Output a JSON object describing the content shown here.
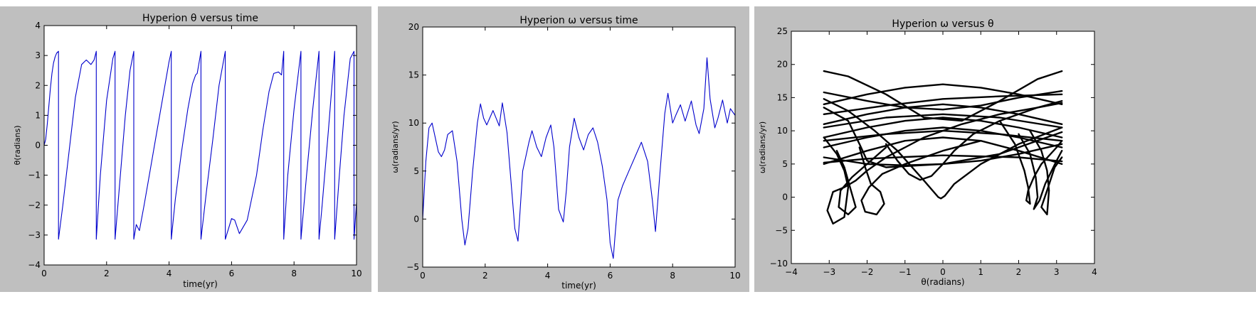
{
  "chart_data": [
    {
      "type": "line",
      "title": "Hyperion θ versus time",
      "xlabel": "time(yr)",
      "ylabel": "θ(radians)",
      "xlim": [
        0,
        10
      ],
      "ylim": [
        -4,
        4
      ],
      "xticks": [
        0,
        2,
        4,
        6,
        8,
        10
      ],
      "xtick_labels": [
        "0",
        "2",
        "4",
        "6",
        "8",
        "10"
      ],
      "yticks": [
        -4,
        -3,
        -2,
        -1,
        0,
        1,
        2,
        3,
        4
      ],
      "ytick_labels": [
        "−4",
        "−3",
        "−2",
        "−1",
        "0",
        "1",
        "2",
        "3",
        "4"
      ],
      "grid": false,
      "color": "#0000cc",
      "x": [
        0,
        0.05,
        0.1,
        0.15,
        0.2,
        0.25,
        0.3,
        0.35,
        0.4,
        0.46,
        0.46,
        0.6,
        0.8,
        1.0,
        1.2,
        1.35,
        1.5,
        1.6,
        1.67,
        1.67,
        1.8,
        2.0,
        2.2,
        2.27,
        2.27,
        2.4,
        2.6,
        2.75,
        2.87,
        2.87,
        2.95,
        3.05,
        3.2,
        3.4,
        3.6,
        3.8,
        4.0,
        4.07,
        4.07,
        4.2,
        4.4,
        4.6,
        4.75,
        4.85,
        4.9,
        4.95,
        5.02,
        5.02,
        5.2,
        5.4,
        5.6,
        5.8,
        5.8,
        6.0,
        6.1,
        6.25,
        6.5,
        6.8,
        7.0,
        7.2,
        7.35,
        7.5,
        7.6,
        7.67,
        7.67,
        7.8,
        8.0,
        8.22,
        8.22,
        8.4,
        8.6,
        8.8,
        8.8,
        8.9,
        9.1,
        9.3,
        9.3,
        9.45,
        9.6,
        9.8,
        9.92,
        9.92,
        10.0
      ],
      "y": [
        0,
        0.2,
        0.7,
        1.3,
        1.9,
        2.4,
        2.75,
        2.95,
        3.08,
        3.14,
        -3.14,
        -2.0,
        -0.2,
        1.6,
        2.7,
        2.85,
        2.7,
        2.85,
        3.14,
        -3.14,
        -1.0,
        1.5,
        2.9,
        3.14,
        -3.14,
        -1.5,
        1.0,
        2.5,
        3.14,
        -3.14,
        -2.65,
        -2.85,
        -2.0,
        -0.8,
        0.4,
        1.6,
        2.8,
        3.14,
        -3.14,
        -1.8,
        -0.2,
        1.2,
        2.05,
        2.35,
        2.4,
        2.7,
        3.14,
        -3.14,
        -1.5,
        0.2,
        2.0,
        3.14,
        -3.14,
        -2.45,
        -2.5,
        -2.95,
        -2.5,
        -1.0,
        0.5,
        1.8,
        2.4,
        2.45,
        2.35,
        3.14,
        -3.14,
        -1.0,
        1.2,
        3.14,
        -3.14,
        -1.0,
        1.2,
        3.14,
        -3.14,
        -2.0,
        0.5,
        3.14,
        -3.14,
        -1.0,
        1.0,
        2.9,
        3.14,
        -3.14,
        -1.9
      ]
    },
    {
      "type": "line",
      "title": "Hyperion ω versus time",
      "xlabel": "time(yr)",
      "ylabel": "ω(radians/yr)",
      "xlim": [
        0,
        10
      ],
      "ylim": [
        -5,
        20
      ],
      "xticks": [
        0,
        2,
        4,
        6,
        8,
        10
      ],
      "xtick_labels": [
        "0",
        "2",
        "4",
        "6",
        "8",
        "10"
      ],
      "yticks": [
        -5,
        0,
        5,
        10,
        15,
        20
      ],
      "ytick_labels": [
        "−5",
        "0",
        "5",
        "10",
        "15",
        "20"
      ],
      "grid": false,
      "color": "#0000cc",
      "x": [
        0,
        0.1,
        0.2,
        0.3,
        0.4,
        0.5,
        0.6,
        0.7,
        0.8,
        0.95,
        1.1,
        1.25,
        1.35,
        1.45,
        1.6,
        1.75,
        1.85,
        1.95,
        2.05,
        2.25,
        2.45,
        2.55,
        2.7,
        2.85,
        2.95,
        3.05,
        3.1,
        3.2,
        3.4,
        3.5,
        3.65,
        3.8,
        3.95,
        4.1,
        4.2,
        4.35,
        4.5,
        4.6,
        4.7,
        4.85,
        5.0,
        5.15,
        5.3,
        5.45,
        5.6,
        5.75,
        5.9,
        6.0,
        6.1,
        6.15,
        6.25,
        6.4,
        6.6,
        6.8,
        7.0,
        7.2,
        7.35,
        7.45,
        7.6,
        7.75,
        7.85,
        8.0,
        8.1,
        8.25,
        8.4,
        8.6,
        8.75,
        8.85,
        9.0,
        9.1,
        9.2,
        9.35,
        9.45,
        9.6,
        9.75,
        9.85,
        10.0
      ],
      "y": [
        0,
        6,
        9.5,
        10,
        8.5,
        7,
        6.5,
        7.2,
        8.8,
        9.2,
        6,
        0,
        -2.7,
        -1,
        5,
        10,
        12,
        10.5,
        9.8,
        11.3,
        9.7,
        12.1,
        9,
        3,
        -1,
        -2.3,
        0,
        5,
        8,
        9.2,
        7.5,
        6.5,
        8.5,
        9.8,
        7.5,
        1,
        -0.3,
        3,
        7.5,
        10.5,
        8.5,
        7.2,
        8.8,
        9.5,
        8,
        5.5,
        2,
        -2.5,
        -4.1,
        -2,
        2,
        3.5,
        5,
        6.5,
        8,
        6,
        2,
        -1.3,
        5,
        11,
        13.1,
        10,
        10.8,
        11.9,
        10.2,
        12.3,
        9.8,
        8.9,
        11.5,
        16.8,
        12.5,
        9.5,
        10.5,
        12.4,
        10,
        11.5,
        10.8
      ]
    },
    {
      "type": "scatter",
      "title": "Hyperion ω versus θ",
      "xlabel": "θ(radians)",
      "ylabel": "ω(radians/yr)",
      "xlim": [
        -4,
        4
      ],
      "ylim": [
        -10,
        25
      ],
      "xticks": [
        -4,
        -3,
        -2,
        -1,
        0,
        1,
        2,
        3,
        4
      ],
      "xtick_labels": [
        "−4",
        "−3",
        "−2",
        "−1",
        "0",
        "1",
        "2",
        "3",
        "4"
      ],
      "yticks": [
        -10,
        -5,
        0,
        5,
        10,
        15,
        20,
        25
      ],
      "ytick_labels": [
        "−10",
        "−5",
        "0",
        "5",
        "10",
        "15",
        "20",
        "25"
      ],
      "grid": false,
      "color": "#000000",
      "curves": [
        {
          "x": [
            -3.14,
            -2.5,
            -1.5,
            -0.5,
            0.5,
            1.5,
            2.5,
            3.14
          ],
          "y": [
            19,
            18.2,
            15.5,
            12,
            11.5,
            14.5,
            17.8,
            19
          ]
        },
        {
          "x": [
            -3.14,
            -2.0,
            -1.0,
            0,
            1.0,
            2.0,
            3.14
          ],
          "y": [
            14,
            15.5,
            16.5,
            17,
            16.5,
            15.5,
            14
          ]
        },
        {
          "x": [
            -3.14,
            -2.0,
            -1.0,
            0,
            1.0,
            2.0,
            3.14
          ],
          "y": [
            15.8,
            14.5,
            13.5,
            13.2,
            13.8,
            15,
            16
          ]
        },
        {
          "x": [
            -3.14,
            -1.5,
            0,
            1.5,
            3.14
          ],
          "y": [
            12.5,
            13.8,
            14.8,
            15.2,
            15.5
          ]
        },
        {
          "x": [
            -3.14,
            -2.0,
            -1.0,
            0,
            1.0,
            2.0,
            3.14
          ],
          "y": [
            11,
            12.5,
            13.5,
            14,
            13.5,
            12.5,
            11
          ]
        },
        {
          "x": [
            -3.14,
            -2.0,
            -1.0,
            0,
            1.0,
            2.0,
            3.14
          ],
          "y": [
            9,
            10.5,
            11.5,
            12,
            11.5,
            10.5,
            9
          ]
        },
        {
          "x": [
            -3.14,
            -2.0,
            -1.0,
            0,
            1.0,
            2.0,
            3.14
          ],
          "y": [
            7.5,
            9,
            10,
            10.5,
            10,
            9,
            7.5
          ]
        },
        {
          "x": [
            -3.14,
            -2.0,
            -1.0,
            0,
            1.0,
            2.0,
            3.14
          ],
          "y": [
            5,
            7,
            8.5,
            9,
            8.5,
            7,
            5
          ]
        },
        {
          "x": [
            -3.14,
            -2.0,
            -1.0,
            0,
            1.0,
            2.0,
            3.14
          ],
          "y": [
            6,
            5,
            4.8,
            5,
            5.5,
            6.5,
            8
          ]
        },
        {
          "x": [
            -3.14,
            -1.5,
            0,
            1.5,
            3.14
          ],
          "y": [
            10.5,
            12,
            12.5,
            12,
            10.5
          ]
        },
        {
          "x": [
            -3.14,
            -1.5,
            0,
            1.5,
            3.14
          ],
          "y": [
            8.5,
            9.5,
            10,
            9.5,
            8.5
          ]
        },
        {
          "x": [
            -1.5,
            -1.2,
            -0.9,
            -0.6,
            -0.3,
            0,
            0.3,
            0.8,
            1.5,
            2.5,
            3.14
          ],
          "y": [
            8,
            5.5,
            3.5,
            2.6,
            3.2,
            5,
            7,
            9.5,
            11.5,
            13.5,
            14.5
          ]
        },
        {
          "x": [
            -3.14,
            -2.5,
            -1.8,
            -1.2,
            -0.5,
            -0.12,
            -0.05,
            0.05,
            0.3,
            1.0,
            2.0,
            3.14
          ],
          "y": [
            14.8,
            13,
            10,
            7,
            2.5,
            0,
            -0.2,
            0.2,
            2,
            5,
            8,
            10.5
          ]
        },
        {
          "x": [
            -3.14,
            -2.8,
            -2.6,
            -2.5,
            -2.6,
            -2.9,
            -3.05,
            -2.9,
            -2.6,
            -2.3,
            -2.0,
            -1.5,
            -0.5,
            0.5,
            1.5,
            2.5,
            3.14
          ],
          "y": [
            9,
            6.5,
            4,
            1.5,
            -3,
            -4,
            -2,
            0.8,
            1.5,
            2.5,
            4,
            6,
            9,
            11,
            12.5,
            13.5,
            14.2
          ]
        },
        {
          "x": [
            -2.8,
            -2.6,
            -2.45,
            -2.3,
            -2.5,
            -2.75,
            -2.7,
            -2.4,
            -2.0,
            -1.5
          ],
          "y": [
            7,
            4.5,
            1.5,
            -1.5,
            -2.6,
            -1.5,
            1,
            3,
            5,
            7.5
          ]
        },
        {
          "x": [
            -2.2,
            -2.05,
            -1.9,
            -1.65,
            -1.55,
            -1.75,
            -2.05,
            -2.15,
            -1.95,
            -1.6,
            -1.0,
            0,
            1.0
          ],
          "y": [
            7.5,
            4.5,
            2,
            0.8,
            -1,
            -2.6,
            -2.2,
            -0.5,
            1.5,
            3.5,
            5,
            7,
            8.5
          ]
        },
        {
          "x": [
            1.5,
            1.9,
            2.15,
            2.25,
            2.3,
            2.2,
            2.25,
            2.4,
            2.6,
            3.0,
            3.14
          ],
          "y": [
            11.5,
            8,
            4,
            1.5,
            -1,
            -0.5,
            1,
            3,
            5,
            7.5,
            8.5
          ]
        },
        {
          "x": [
            2.0,
            2.3,
            2.45,
            2.5,
            2.4,
            2.55,
            2.7,
            3.0,
            3.14
          ],
          "y": [
            9.5,
            6.5,
            3,
            0,
            -1.8,
            -0.5,
            2,
            5.5,
            7
          ]
        },
        {
          "x": [
            2.3,
            2.6,
            2.75,
            2.8,
            2.75,
            2.6,
            2.75,
            2.95,
            3.14
          ],
          "y": [
            10,
            7,
            4,
            1,
            -2.6,
            -1.5,
            1,
            4.5,
            6
          ]
        },
        {
          "x": [
            -3.14,
            -2.5,
            -2.2,
            -2.0,
            -1.5,
            0,
            1.5,
            3.14
          ],
          "y": [
            13.5,
            11.5,
            8,
            5.5,
            4.5,
            5,
            6.5,
            9.8
          ]
        },
        {
          "x": [
            -3.14,
            -2.0,
            0,
            2.0,
            3.14
          ],
          "y": [
            5.2,
            5.8,
            6.3,
            6.0,
            5.4
          ]
        }
      ]
    }
  ]
}
